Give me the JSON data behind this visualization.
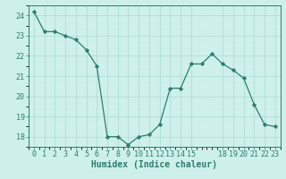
{
  "x": [
    0,
    1,
    2,
    3,
    4,
    5,
    6,
    7,
    8,
    9,
    10,
    11,
    12,
    13,
    14,
    15,
    16,
    17,
    18,
    19,
    20,
    21,
    22,
    23
  ],
  "y": [
    24.2,
    23.2,
    23.2,
    23.0,
    22.8,
    22.3,
    21.5,
    18.0,
    18.0,
    17.6,
    18.0,
    18.1,
    18.6,
    20.4,
    20.4,
    21.6,
    21.6,
    22.1,
    21.6,
    21.3,
    20.9,
    19.6,
    18.6,
    18.5
  ],
  "xlabel": "Humidex (Indice chaleur)",
  "xlim": [
    -0.5,
    23.5
  ],
  "ylim": [
    17.5,
    24.5
  ],
  "yticks": [
    18,
    19,
    20,
    21,
    22,
    23,
    24
  ],
  "xticks": [
    0,
    1,
    2,
    3,
    4,
    5,
    6,
    7,
    8,
    9,
    10,
    11,
    12,
    13,
    14,
    15,
    18,
    19,
    20,
    21,
    22,
    23
  ],
  "xticklabels": [
    "0",
    "1",
    "2",
    "3",
    "4",
    "5",
    "6",
    "7",
    "8",
    "9",
    "10",
    "11",
    "12",
    "13",
    "14",
    "15",
    "18",
    "19",
    "20",
    "21",
    "22",
    "23"
  ],
  "line_color": "#2d7d6e",
  "marker_color": "#2d7d6e",
  "bg_color": "#cef0ea",
  "grid_major_color": "#b0ddd6",
  "grid_minor_color": "#daf5f0",
  "axis_color": "#2d7d6e",
  "tick_label_color": "#2d7d6e",
  "xlabel_color": "#2d7d6e",
  "label_fontsize": 7.0,
  "tick_fontsize": 6.0
}
